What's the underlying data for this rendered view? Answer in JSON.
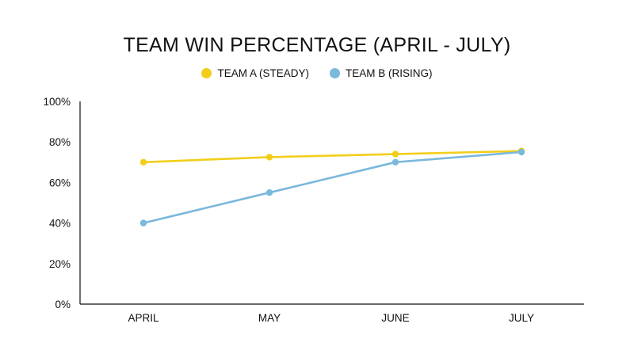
{
  "chart_data": {
    "type": "line",
    "title": "TEAM WIN PERCENTAGE (APRIL - JULY)",
    "xlabel": "",
    "ylabel": "",
    "categories": [
      "APRIL",
      "MAY",
      "JUNE",
      "JULY"
    ],
    "ylim": [
      0,
      100
    ],
    "y_ticks": [
      0,
      20,
      40,
      60,
      80,
      100
    ],
    "y_tick_labels": [
      "0%",
      "20%",
      "40%",
      "60%",
      "80%",
      "100%"
    ],
    "grid": false,
    "legend_position": "top-center",
    "series": [
      {
        "name": "TEAM A (STEADY)",
        "values": [
          70,
          72.5,
          74,
          75.5
        ],
        "color": "#F2CE1A"
      },
      {
        "name": "TEAM B (RISING)",
        "values": [
          40,
          55,
          70,
          75
        ],
        "color": "#7AB8DC"
      }
    ]
  }
}
